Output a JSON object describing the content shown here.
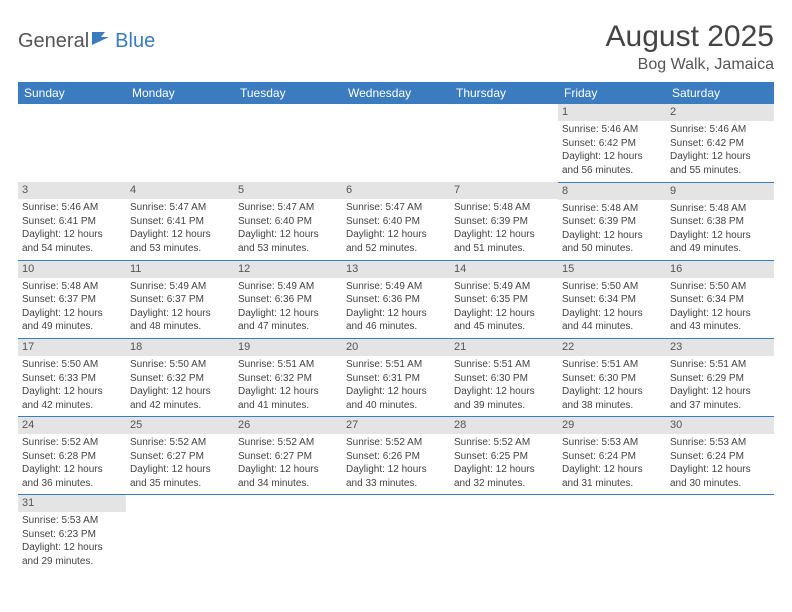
{
  "brand": {
    "part1": "General",
    "part2": "Blue"
  },
  "title": "August 2025",
  "location": "Bog Walk, Jamaica",
  "colors": {
    "header_bg": "#3b7bbf",
    "header_text": "#ffffff",
    "daynum_bg": "#e4e4e4",
    "border": "#3b7bbf",
    "body_text": "#444444"
  },
  "day_headers": [
    "Sunday",
    "Monday",
    "Tuesday",
    "Wednesday",
    "Thursday",
    "Friday",
    "Saturday"
  ],
  "weeks": [
    [
      null,
      null,
      null,
      null,
      null,
      {
        "n": "1",
        "sr": "5:46 AM",
        "ss": "6:42 PM",
        "dh": "12",
        "dm": "56"
      },
      {
        "n": "2",
        "sr": "5:46 AM",
        "ss": "6:42 PM",
        "dh": "12",
        "dm": "55"
      }
    ],
    [
      {
        "n": "3",
        "sr": "5:46 AM",
        "ss": "6:41 PM",
        "dh": "12",
        "dm": "54"
      },
      {
        "n": "4",
        "sr": "5:47 AM",
        "ss": "6:41 PM",
        "dh": "12",
        "dm": "53"
      },
      {
        "n": "5",
        "sr": "5:47 AM",
        "ss": "6:40 PM",
        "dh": "12",
        "dm": "53"
      },
      {
        "n": "6",
        "sr": "5:47 AM",
        "ss": "6:40 PM",
        "dh": "12",
        "dm": "52"
      },
      {
        "n": "7",
        "sr": "5:48 AM",
        "ss": "6:39 PM",
        "dh": "12",
        "dm": "51"
      },
      {
        "n": "8",
        "sr": "5:48 AM",
        "ss": "6:39 PM",
        "dh": "12",
        "dm": "50"
      },
      {
        "n": "9",
        "sr": "5:48 AM",
        "ss": "6:38 PM",
        "dh": "12",
        "dm": "49"
      }
    ],
    [
      {
        "n": "10",
        "sr": "5:48 AM",
        "ss": "6:37 PM",
        "dh": "12",
        "dm": "49"
      },
      {
        "n": "11",
        "sr": "5:49 AM",
        "ss": "6:37 PM",
        "dh": "12",
        "dm": "48"
      },
      {
        "n": "12",
        "sr": "5:49 AM",
        "ss": "6:36 PM",
        "dh": "12",
        "dm": "47"
      },
      {
        "n": "13",
        "sr": "5:49 AM",
        "ss": "6:36 PM",
        "dh": "12",
        "dm": "46"
      },
      {
        "n": "14",
        "sr": "5:49 AM",
        "ss": "6:35 PM",
        "dh": "12",
        "dm": "45"
      },
      {
        "n": "15",
        "sr": "5:50 AM",
        "ss": "6:34 PM",
        "dh": "12",
        "dm": "44"
      },
      {
        "n": "16",
        "sr": "5:50 AM",
        "ss": "6:34 PM",
        "dh": "12",
        "dm": "43"
      }
    ],
    [
      {
        "n": "17",
        "sr": "5:50 AM",
        "ss": "6:33 PM",
        "dh": "12",
        "dm": "42"
      },
      {
        "n": "18",
        "sr": "5:50 AM",
        "ss": "6:32 PM",
        "dh": "12",
        "dm": "42"
      },
      {
        "n": "19",
        "sr": "5:51 AM",
        "ss": "6:32 PM",
        "dh": "12",
        "dm": "41"
      },
      {
        "n": "20",
        "sr": "5:51 AM",
        "ss": "6:31 PM",
        "dh": "12",
        "dm": "40"
      },
      {
        "n": "21",
        "sr": "5:51 AM",
        "ss": "6:30 PM",
        "dh": "12",
        "dm": "39"
      },
      {
        "n": "22",
        "sr": "5:51 AM",
        "ss": "6:30 PM",
        "dh": "12",
        "dm": "38"
      },
      {
        "n": "23",
        "sr": "5:51 AM",
        "ss": "6:29 PM",
        "dh": "12",
        "dm": "37"
      }
    ],
    [
      {
        "n": "24",
        "sr": "5:52 AM",
        "ss": "6:28 PM",
        "dh": "12",
        "dm": "36"
      },
      {
        "n": "25",
        "sr": "5:52 AM",
        "ss": "6:27 PM",
        "dh": "12",
        "dm": "35"
      },
      {
        "n": "26",
        "sr": "5:52 AM",
        "ss": "6:27 PM",
        "dh": "12",
        "dm": "34"
      },
      {
        "n": "27",
        "sr": "5:52 AM",
        "ss": "6:26 PM",
        "dh": "12",
        "dm": "33"
      },
      {
        "n": "28",
        "sr": "5:52 AM",
        "ss": "6:25 PM",
        "dh": "12",
        "dm": "32"
      },
      {
        "n": "29",
        "sr": "5:53 AM",
        "ss": "6:24 PM",
        "dh": "12",
        "dm": "31"
      },
      {
        "n": "30",
        "sr": "5:53 AM",
        "ss": "6:24 PM",
        "dh": "12",
        "dm": "30"
      }
    ],
    [
      {
        "n": "31",
        "sr": "5:53 AM",
        "ss": "6:23 PM",
        "dh": "12",
        "dm": "29"
      },
      null,
      null,
      null,
      null,
      null,
      null
    ]
  ],
  "labels": {
    "sunrise": "Sunrise:",
    "sunset": "Sunset:",
    "daylight": "Daylight:",
    "hours": "hours",
    "and": "and",
    "minutes": "minutes."
  }
}
